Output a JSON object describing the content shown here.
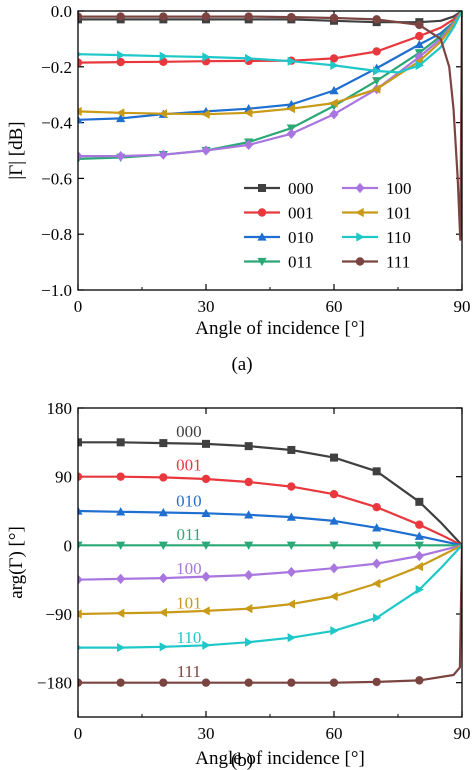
{
  "chart_data": [
    {
      "panel_id": "a",
      "caption": "(a)",
      "type": "line",
      "xlabel": "Angle of incidence [°]",
      "ylabel": "|Γ| [dB]",
      "xlim": [
        0,
        90
      ],
      "ylim": [
        -1.0,
        0.0
      ],
      "xticks": [
        0,
        30,
        60,
        90
      ],
      "xtick_labels": [
        "0",
        "30",
        "60",
        "90"
      ],
      "yticks": [
        -1.0,
        -0.8,
        -0.6,
        -0.4,
        -0.2,
        0.0
      ],
      "ytick_labels": [
        "−1.0",
        "−0.8",
        "−0.6",
        "−0.4",
        "−0.2",
        "0.0"
      ],
      "grid": false,
      "legend": "bottom-right",
      "series": [
        {
          "name": "000",
          "color": "#404040",
          "marker": "square",
          "x": [
            0,
            10,
            20,
            30,
            40,
            50,
            60,
            70,
            80,
            85,
            88,
            90
          ],
          "y": [
            -0.03,
            -0.03,
            -0.03,
            -0.03,
            -0.03,
            -0.03,
            -0.035,
            -0.04,
            -0.04,
            -0.035,
            -0.02,
            0.0
          ]
        },
        {
          "name": "001",
          "color": "#e8383d",
          "marker": "circle",
          "x": [
            0,
            10,
            20,
            30,
            40,
            50,
            60,
            70,
            80,
            85,
            88,
            90
          ],
          "y": [
            -0.185,
            -0.183,
            -0.182,
            -0.18,
            -0.179,
            -0.178,
            -0.17,
            -0.145,
            -0.09,
            -0.06,
            -0.03,
            0.0
          ]
        },
        {
          "name": "010",
          "color": "#1f6fd1",
          "marker": "triangle-up",
          "x": [
            0,
            10,
            20,
            30,
            40,
            50,
            60,
            70,
            80,
            85,
            88,
            90
          ],
          "y": [
            -0.39,
            -0.385,
            -0.37,
            -0.36,
            -0.35,
            -0.335,
            -0.285,
            -0.205,
            -0.12,
            -0.08,
            -0.04,
            0.0
          ]
        },
        {
          "name": "011",
          "color": "#2aa876",
          "marker": "triangle-down",
          "x": [
            0,
            10,
            20,
            30,
            40,
            50,
            60,
            70,
            80,
            85,
            88,
            90
          ],
          "y": [
            -0.53,
            -0.525,
            -0.515,
            -0.5,
            -0.47,
            -0.42,
            -0.34,
            -0.25,
            -0.15,
            -0.09,
            -0.04,
            0.0
          ]
        },
        {
          "name": "100",
          "color": "#a976e0",
          "marker": "diamond",
          "x": [
            0,
            10,
            20,
            30,
            40,
            50,
            60,
            70,
            80,
            85,
            88,
            90
          ],
          "y": [
            -0.52,
            -0.52,
            -0.515,
            -0.5,
            -0.48,
            -0.44,
            -0.37,
            -0.28,
            -0.165,
            -0.1,
            -0.045,
            0.0
          ]
        },
        {
          "name": "101",
          "color": "#c89a18",
          "marker": "triangle-left",
          "x": [
            0,
            10,
            20,
            30,
            40,
            50,
            60,
            70,
            80,
            85,
            88,
            90
          ],
          "y": [
            -0.36,
            -0.365,
            -0.368,
            -0.37,
            -0.365,
            -0.35,
            -0.33,
            -0.28,
            -0.18,
            -0.11,
            -0.05,
            0.0
          ]
        },
        {
          "name": "110",
          "color": "#1fc8c8",
          "marker": "triangle-right",
          "x": [
            0,
            10,
            20,
            30,
            40,
            50,
            60,
            70,
            75,
            80,
            85,
            88,
            90
          ],
          "y": [
            -0.155,
            -0.158,
            -0.162,
            -0.165,
            -0.17,
            -0.18,
            -0.195,
            -0.215,
            -0.22,
            -0.195,
            -0.13,
            -0.06,
            0.0
          ]
        },
        {
          "name": "111",
          "color": "#7b4441",
          "marker": "circle",
          "x": [
            0,
            10,
            20,
            30,
            40,
            50,
            60,
            70,
            80,
            85,
            87,
            88,
            89,
            89.6,
            90
          ],
          "y": [
            -0.02,
            -0.02,
            -0.02,
            -0.02,
            -0.02,
            -0.022,
            -0.025,
            -0.03,
            -0.05,
            -0.1,
            -0.2,
            -0.35,
            -0.6,
            -0.82,
            0.0
          ]
        }
      ]
    },
    {
      "panel_id": "b",
      "caption": "(b)",
      "type": "line",
      "xlabel": "Angle of incidence [°]",
      "ylabel": "arg(Γ) [°]",
      "xlim": [
        0,
        90
      ],
      "ylim": [
        -225,
        180
      ],
      "xticks": [
        0,
        30,
        60,
        90
      ],
      "xtick_labels": [
        "0",
        "30",
        "60",
        "90"
      ],
      "yticks": [
        -180,
        -90,
        0,
        90,
        180
      ],
      "ytick_labels": [
        "−180",
        "−90",
        "0",
        "90",
        "180"
      ],
      "grid": false,
      "legend": "inline labels",
      "series": [
        {
          "name": "000",
          "color": "#404040",
          "marker": "square",
          "label_at": [
            26,
            150
          ],
          "x": [
            0,
            10,
            20,
            30,
            40,
            50,
            60,
            70,
            80,
            85,
            90
          ],
          "y": [
            135,
            135,
            134,
            133,
            130,
            125,
            115,
            97,
            57,
            30,
            0
          ]
        },
        {
          "name": "001",
          "color": "#e8383d",
          "marker": "circle",
          "label_at": [
            26,
            106
          ],
          "x": [
            0,
            10,
            20,
            30,
            40,
            50,
            60,
            70,
            80,
            85,
            90
          ],
          "y": [
            90,
            90,
            89,
            87,
            83,
            77,
            67,
            50,
            27,
            14,
            0
          ]
        },
        {
          "name": "010",
          "color": "#1f6fd1",
          "marker": "triangle-up",
          "label_at": [
            26,
            59
          ],
          "x": [
            0,
            10,
            20,
            30,
            40,
            50,
            60,
            70,
            80,
            85,
            90
          ],
          "y": [
            45,
            44,
            43,
            42,
            40,
            37,
            32,
            23,
            12,
            6,
            0
          ]
        },
        {
          "name": "011",
          "color": "#2aa876",
          "marker": "triangle-down",
          "label_at": [
            26,
            15
          ],
          "x": [
            0,
            10,
            20,
            30,
            40,
            50,
            60,
            70,
            80,
            85,
            90
          ],
          "y": [
            0,
            0,
            0,
            0,
            0,
            0,
            0,
            0,
            0,
            0,
            0
          ]
        },
        {
          "name": "100",
          "color": "#a976e0",
          "marker": "diamond",
          "label_at": [
            26,
            -30
          ],
          "x": [
            0,
            10,
            20,
            30,
            40,
            50,
            60,
            70,
            80,
            85,
            90
          ],
          "y": [
            -45,
            -44,
            -43,
            -41,
            -39,
            -35,
            -30,
            -24,
            -14,
            -7,
            0
          ]
        },
        {
          "name": "101",
          "color": "#c89a18",
          "marker": "triangle-left",
          "label_at": [
            26,
            -75
          ],
          "x": [
            0,
            10,
            20,
            30,
            40,
            50,
            60,
            70,
            80,
            85,
            90
          ],
          "y": [
            -90,
            -89,
            -88,
            -86,
            -83,
            -77,
            -67,
            -50,
            -28,
            -14,
            0
          ]
        },
        {
          "name": "110",
          "color": "#1fc8c8",
          "marker": "triangle-right",
          "label_at": [
            26,
            -120
          ],
          "x": [
            0,
            10,
            20,
            30,
            40,
            50,
            60,
            70,
            80,
            85,
            90
          ],
          "y": [
            -134,
            -134,
            -133,
            -131,
            -127,
            -121,
            -112,
            -95,
            -58,
            -30,
            0
          ]
        },
        {
          "name": "111",
          "color": "#7b4441",
          "marker": "circle",
          "label_at": [
            26,
            -165
          ],
          "x": [
            0,
            10,
            20,
            30,
            40,
            50,
            60,
            70,
            80,
            88,
            89.5,
            90
          ],
          "y": [
            -180,
            -180,
            -180,
            -180,
            -180,
            -180,
            -180,
            -179,
            -177,
            -170,
            -160,
            0
          ]
        }
      ]
    }
  ]
}
